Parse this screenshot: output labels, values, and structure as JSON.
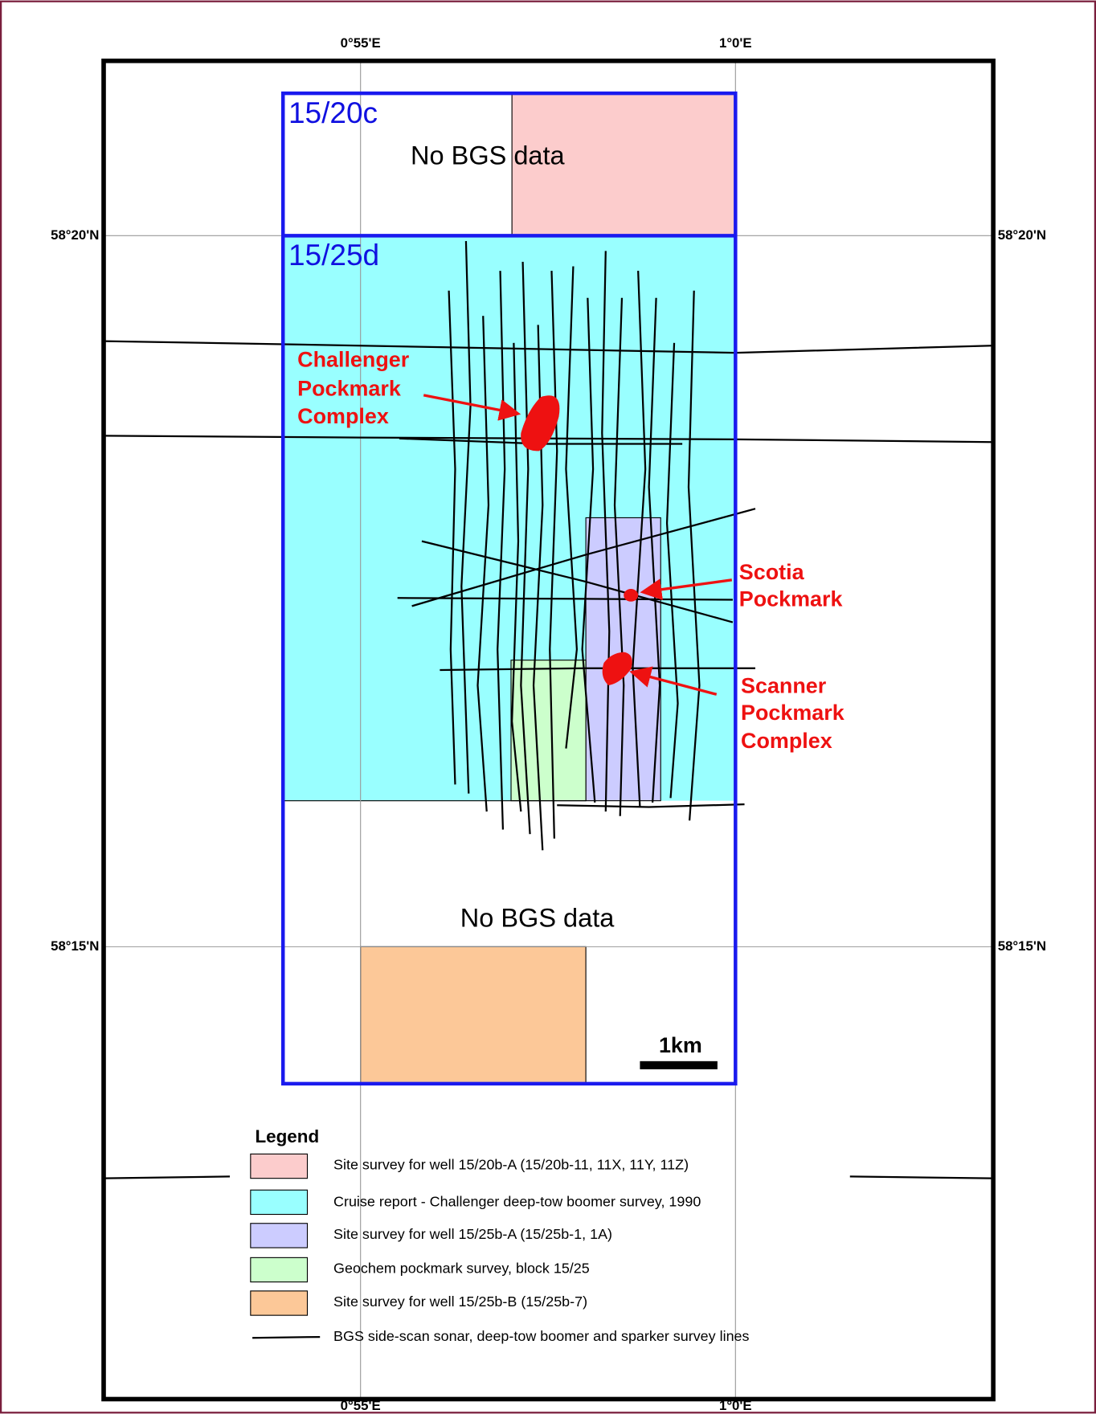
{
  "map": {
    "x_axis_labels": [
      "0°55'E",
      "1°0'E"
    ],
    "y_axis_labels": [
      "58°20'N",
      "58°15'N"
    ],
    "blocks": [
      {
        "label": "15/20c",
        "note": "No BGS data"
      },
      {
        "label": "15/25d",
        "note": "No BGS data"
      }
    ],
    "features": [
      {
        "lines": [
          "Challenger",
          "Pockmark",
          "Complex"
        ]
      },
      {
        "lines": [
          "Scotia",
          "Pockmark"
        ]
      },
      {
        "lines": [
          "Scanner",
          "Pockmark",
          "Complex"
        ]
      }
    ],
    "scale_bar": "1km",
    "legend": {
      "title": "Legend",
      "items": [
        "Site survey for well 15/20b-A (15/20b-11, 11X, 11Y, 11Z)",
        "Cruise report - Challenger deep-tow boomer survey, 1990",
        "Site survey for well 15/25b-A (15/25b-1, 1A)",
        "Geochem pockmark survey, block 15/25",
        "Site survey for well 15/25b-B (15/25b-7)",
        "BGS side-scan sonar, deep-tow boomer and sparker survey lines"
      ]
    }
  }
}
